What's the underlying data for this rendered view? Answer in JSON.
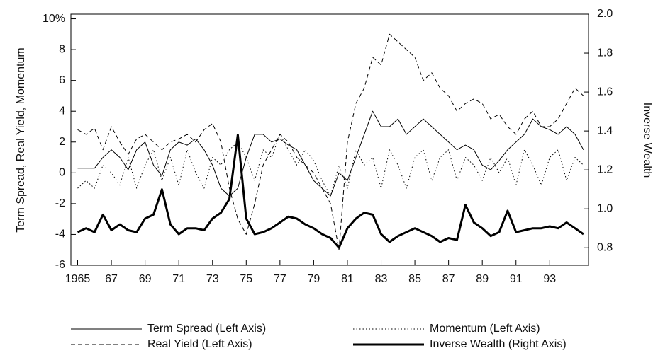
{
  "chart_data": {
    "type": "line",
    "y_label": "Term Spread, Real Yield, Momentum",
    "y2_label": "Inverse Wealth",
    "x": [
      1965,
      1965.5,
      1966,
      1966.5,
      1967,
      1967.5,
      1968,
      1968.5,
      1969,
      1969.5,
      1970,
      1970.5,
      1971,
      1971.5,
      1972,
      1972.5,
      1973,
      1973.5,
      1974,
      1974.5,
      1975,
      1975.5,
      1976,
      1976.5,
      1977,
      1977.5,
      1978,
      1978.5,
      1979,
      1979.5,
      1980,
      1980.5,
      1981,
      1981.5,
      1982,
      1982.5,
      1983,
      1983.5,
      1984,
      1984.5,
      1985,
      1985.5,
      1986,
      1986.5,
      1987,
      1987.5,
      1988,
      1988.5,
      1989,
      1989.5,
      1990,
      1990.5,
      1991,
      1991.5,
      1992,
      1992.5,
      1993,
      1993.5,
      1994,
      1994.5,
      1995
    ],
    "xlim": [
      1964.6,
      1995.3
    ],
    "xticks": [
      {
        "value": 1965,
        "label": "1965"
      },
      {
        "value": 1967,
        "label": "67"
      },
      {
        "value": 1969,
        "label": "69"
      },
      {
        "value": 1971,
        "label": "71"
      },
      {
        "value": 1973,
        "label": "73"
      },
      {
        "value": 1975,
        "label": "75"
      },
      {
        "value": 1977,
        "label": "77"
      },
      {
        "value": 1979,
        "label": "79"
      },
      {
        "value": 1981,
        "label": "81"
      },
      {
        "value": 1983,
        "label": "83"
      },
      {
        "value": 1985,
        "label": "85"
      },
      {
        "value": 1987,
        "label": "87"
      },
      {
        "value": 1989,
        "label": "89"
      },
      {
        "value": 1991,
        "label": "91"
      },
      {
        "value": 1993,
        "label": "93"
      }
    ],
    "ylim": [
      -6,
      10.3
    ],
    "yticks": [
      -6,
      -4,
      -2,
      0,
      2,
      4,
      6,
      8,
      {
        "value": 10,
        "label": "10%"
      }
    ],
    "y2lim": [
      0.71,
      2.0
    ],
    "y2ticks": [
      0.8,
      {
        "value": 1,
        "label": "1.0"
      },
      1.2,
      1.4,
      1.6,
      1.8,
      {
        "value": 2,
        "label": "2.0"
      }
    ],
    "series": [
      {
        "name": "Term Spread (Left Axis)",
        "color": "#000000",
        "linestyle": "solid",
        "linewidth": 1,
        "values": [
          0.3,
          0.3,
          0.3,
          1,
          1.5,
          1.0,
          0.2,
          1.5,
          2.0,
          0.5,
          -0.2,
          1.5,
          2.0,
          1.8,
          2.2,
          1.5,
          0.5,
          -1.0,
          -1.5,
          -1.0,
          1.0,
          2.5,
          2.5,
          2.0,
          2.2,
          1.8,
          1.5,
          0.5,
          -0.5,
          -1.0,
          -1.5,
          0,
          -0.5,
          1.0,
          2.5,
          4.0,
          3.0,
          3.0,
          3.5,
          2.5,
          3.0,
          3.5,
          3.0,
          2.5,
          2.0,
          1.5,
          1.8,
          1.5,
          0.5,
          0.2,
          0.8,
          1.5,
          2.0,
          2.5,
          3.5,
          3.0,
          2.8,
          2.5,
          3.0,
          2.5,
          1.5
        ]
      },
      {
        "name": "Real Yield (Left Axis)",
        "color": "#000000",
        "linestyle": "dashed",
        "linewidth": 1,
        "values": [
          2.8,
          2.5,
          2.9,
          1.5,
          3.0,
          2.0,
          1.2,
          2.2,
          2.5,
          2.0,
          1.5,
          2.0,
          2.2,
          2.5,
          2.0,
          2.8,
          3.2,
          2.0,
          -1.0,
          -3.0,
          -4.0,
          -2.0,
          0.5,
          1.5,
          2.5,
          2.0,
          1.0,
          0.5,
          0,
          -1.0,
          -2.0,
          -5.0,
          2.0,
          4.5,
          5.5,
          7.5,
          7.0,
          9.0,
          8.5,
          8.0,
          7.5,
          6.0,
          6.5,
          5.5,
          5.0,
          4.0,
          4.5,
          4.8,
          4.5,
          3.5,
          3.8,
          3.0,
          2.5,
          3.5,
          4.0,
          3.0,
          3.0,
          3.5,
          4.5,
          5.5,
          5.0
        ]
      },
      {
        "name": "Momentum (Left Axis)",
        "color": "#000000",
        "linestyle": "dotted",
        "linewidth": 1,
        "values": [
          -1,
          -0.5,
          -1,
          0.5,
          0,
          -0.8,
          1.0,
          -1.0,
          0.5,
          1.5,
          -0.5,
          1.0,
          -0.8,
          1.5,
          0,
          -1,
          1.0,
          0.5,
          1.5,
          2.0,
          1.0,
          -0.5,
          1.5,
          1.0,
          2.5,
          1.5,
          0.5,
          1.5,
          0.8,
          -0.5,
          -1.5,
          0.5,
          -1.0,
          1.5,
          0.5,
          1.0,
          -1.0,
          1.5,
          0.5,
          -1.0,
          1.0,
          1.5,
          -0.5,
          1.0,
          1.5,
          -0.5,
          1.0,
          0.5,
          -0.5,
          1.0,
          0,
          1.0,
          -0.8,
          1.5,
          0.5,
          -0.8,
          1.0,
          1.5,
          -0.5,
          1.0,
          0.5
        ]
      },
      {
        "name": "Inverse Wealth (Right Axis)",
        "color": "#000000",
        "linestyle": "solid",
        "linewidth": 3,
        "axis": "y2",
        "values": [
          0.88,
          0.9,
          0.88,
          0.97,
          0.89,
          0.92,
          0.89,
          0.88,
          0.95,
          0.97,
          1.1,
          0.92,
          0.87,
          0.9,
          0.9,
          0.89,
          0.95,
          0.98,
          1.05,
          1.38,
          0.95,
          0.87,
          0.88,
          0.9,
          0.93,
          0.96,
          0.95,
          0.92,
          0.9,
          0.87,
          0.85,
          0.8,
          0.9,
          0.95,
          0.98,
          0.97,
          0.87,
          0.83,
          0.86,
          0.88,
          0.9,
          0.88,
          0.86,
          0.83,
          0.85,
          0.84,
          1.02,
          0.93,
          0.9,
          0.86,
          0.88,
          0.99,
          0.88,
          0.89,
          0.9,
          0.9,
          0.91,
          0.9,
          0.93,
          0.9,
          0.87
        ]
      }
    ]
  }
}
